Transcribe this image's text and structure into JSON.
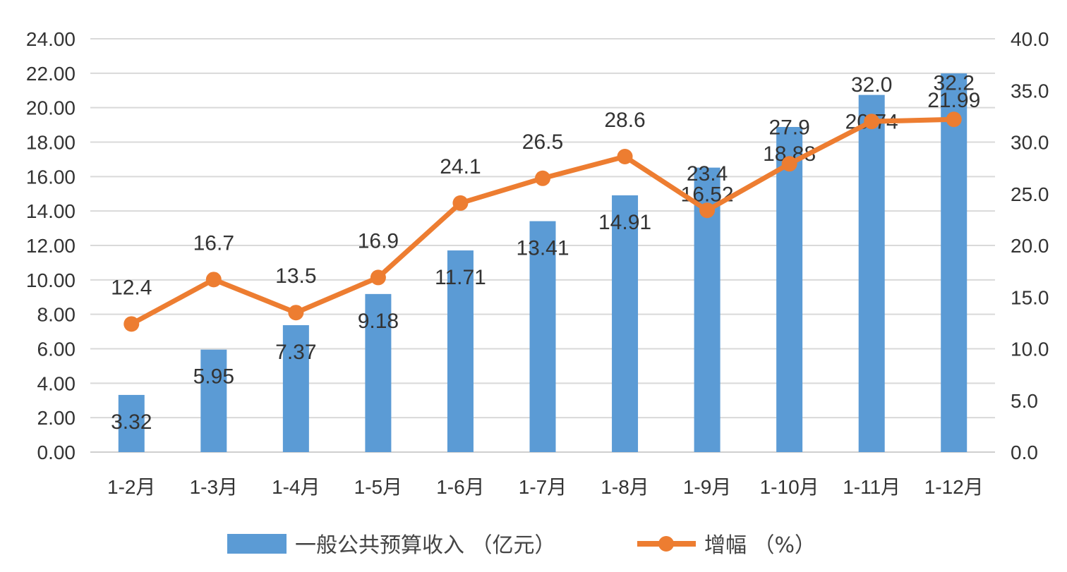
{
  "chart_data": {
    "type": "bar",
    "categories": [
      "1-2月",
      "1-3月",
      "1-4月",
      "1-5月",
      "1-6月",
      "1-7月",
      "1-8月",
      "1-9月",
      "1-10月",
      "1-11月",
      "1-12月"
    ],
    "series": [
      {
        "name": "一般公共预算收入 （亿元）",
        "type": "bar",
        "axis": "left",
        "color": "#5B9BD5",
        "values": [
          3.32,
          5.95,
          7.37,
          9.18,
          11.71,
          13.41,
          14.91,
          16.52,
          18.88,
          20.74,
          21.99
        ],
        "labels": [
          "3.32",
          "5.95",
          "7.37",
          "9.18",
          "11.71",
          "13.41",
          "14.91",
          "16.52",
          "18.88",
          "20.74",
          "21.99"
        ]
      },
      {
        "name": "增幅 （%）",
        "type": "line",
        "axis": "right",
        "color": "#ED7D31",
        "values": [
          12.4,
          16.7,
          13.5,
          16.9,
          24.1,
          26.5,
          28.6,
          23.4,
          27.9,
          32.0,
          32.2
        ],
        "labels": [
          "12.4",
          "16.7",
          "13.5",
          "16.9",
          "24.1",
          "26.5",
          "28.6",
          "23.4",
          "27.9",
          "32.0",
          "32.2"
        ]
      }
    ],
    "left_axis": {
      "ylim": [
        0,
        24
      ],
      "ticks": [
        "0.00",
        "2.00",
        "4.00",
        "6.00",
        "8.00",
        "10.00",
        "12.00",
        "14.00",
        "16.00",
        "18.00",
        "20.00",
        "22.00",
        "24.00"
      ]
    },
    "right_axis": {
      "ylim": [
        0,
        40
      ],
      "ticks": [
        "0.0",
        "5.0",
        "10.0",
        "15.0",
        "20.0",
        "25.0",
        "30.0",
        "35.0",
        "40.0"
      ]
    },
    "grid": true,
    "legend_position": "bottom"
  }
}
